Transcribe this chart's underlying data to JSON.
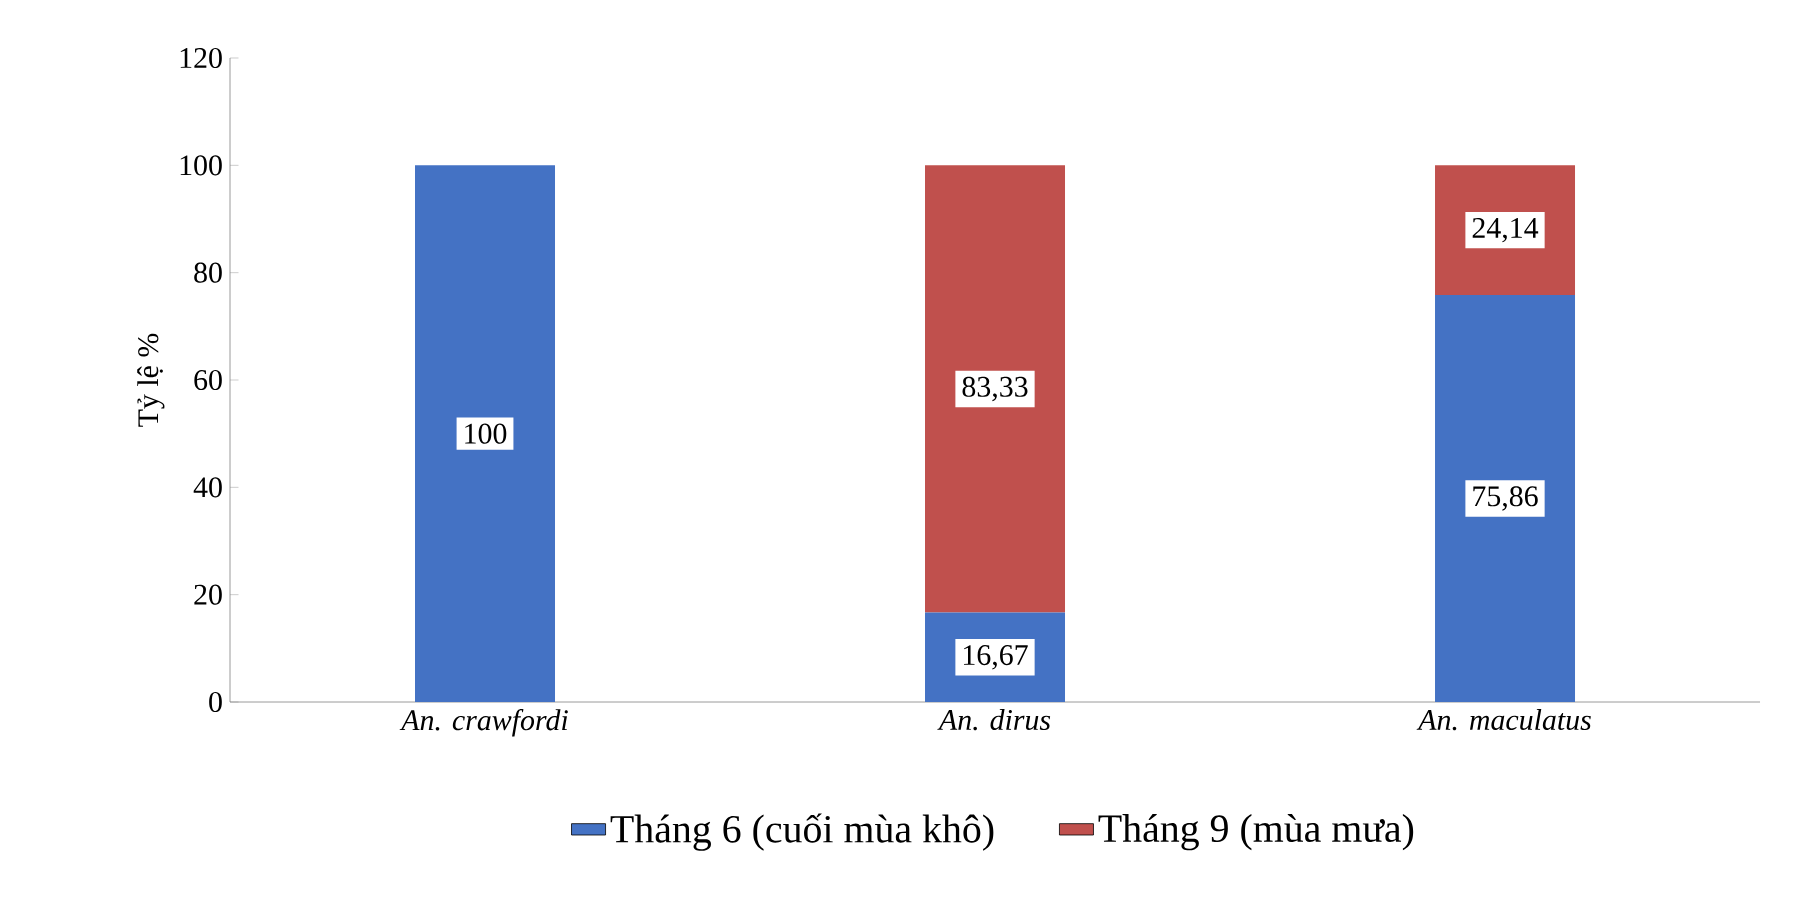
{
  "chart_data": {
    "type": "bar",
    "stacked": true,
    "ylabel": "Tỷ lệ %",
    "categories": [
      "An. crawfordi",
      "An. dirus",
      "An. maculatus"
    ],
    "series": [
      {
        "name": "Tháng 6 (cuối mùa khô)",
        "color": "#4472c4",
        "values": [
          100,
          16.67,
          75.86
        ],
        "value_labels": [
          "100",
          "16,67",
          "75,86"
        ]
      },
      {
        "name": "Tháng 9 (mùa mưa)",
        "color": "#c0504d",
        "values": [
          null,
          83.33,
          24.14
        ],
        "value_labels": [
          null,
          "83,33",
          "24,14"
        ]
      }
    ],
    "ylim": [
      0,
      120
    ],
    "yticks": [
      0,
      20,
      40,
      60,
      80,
      100,
      120
    ],
    "legend": "bottom"
  }
}
